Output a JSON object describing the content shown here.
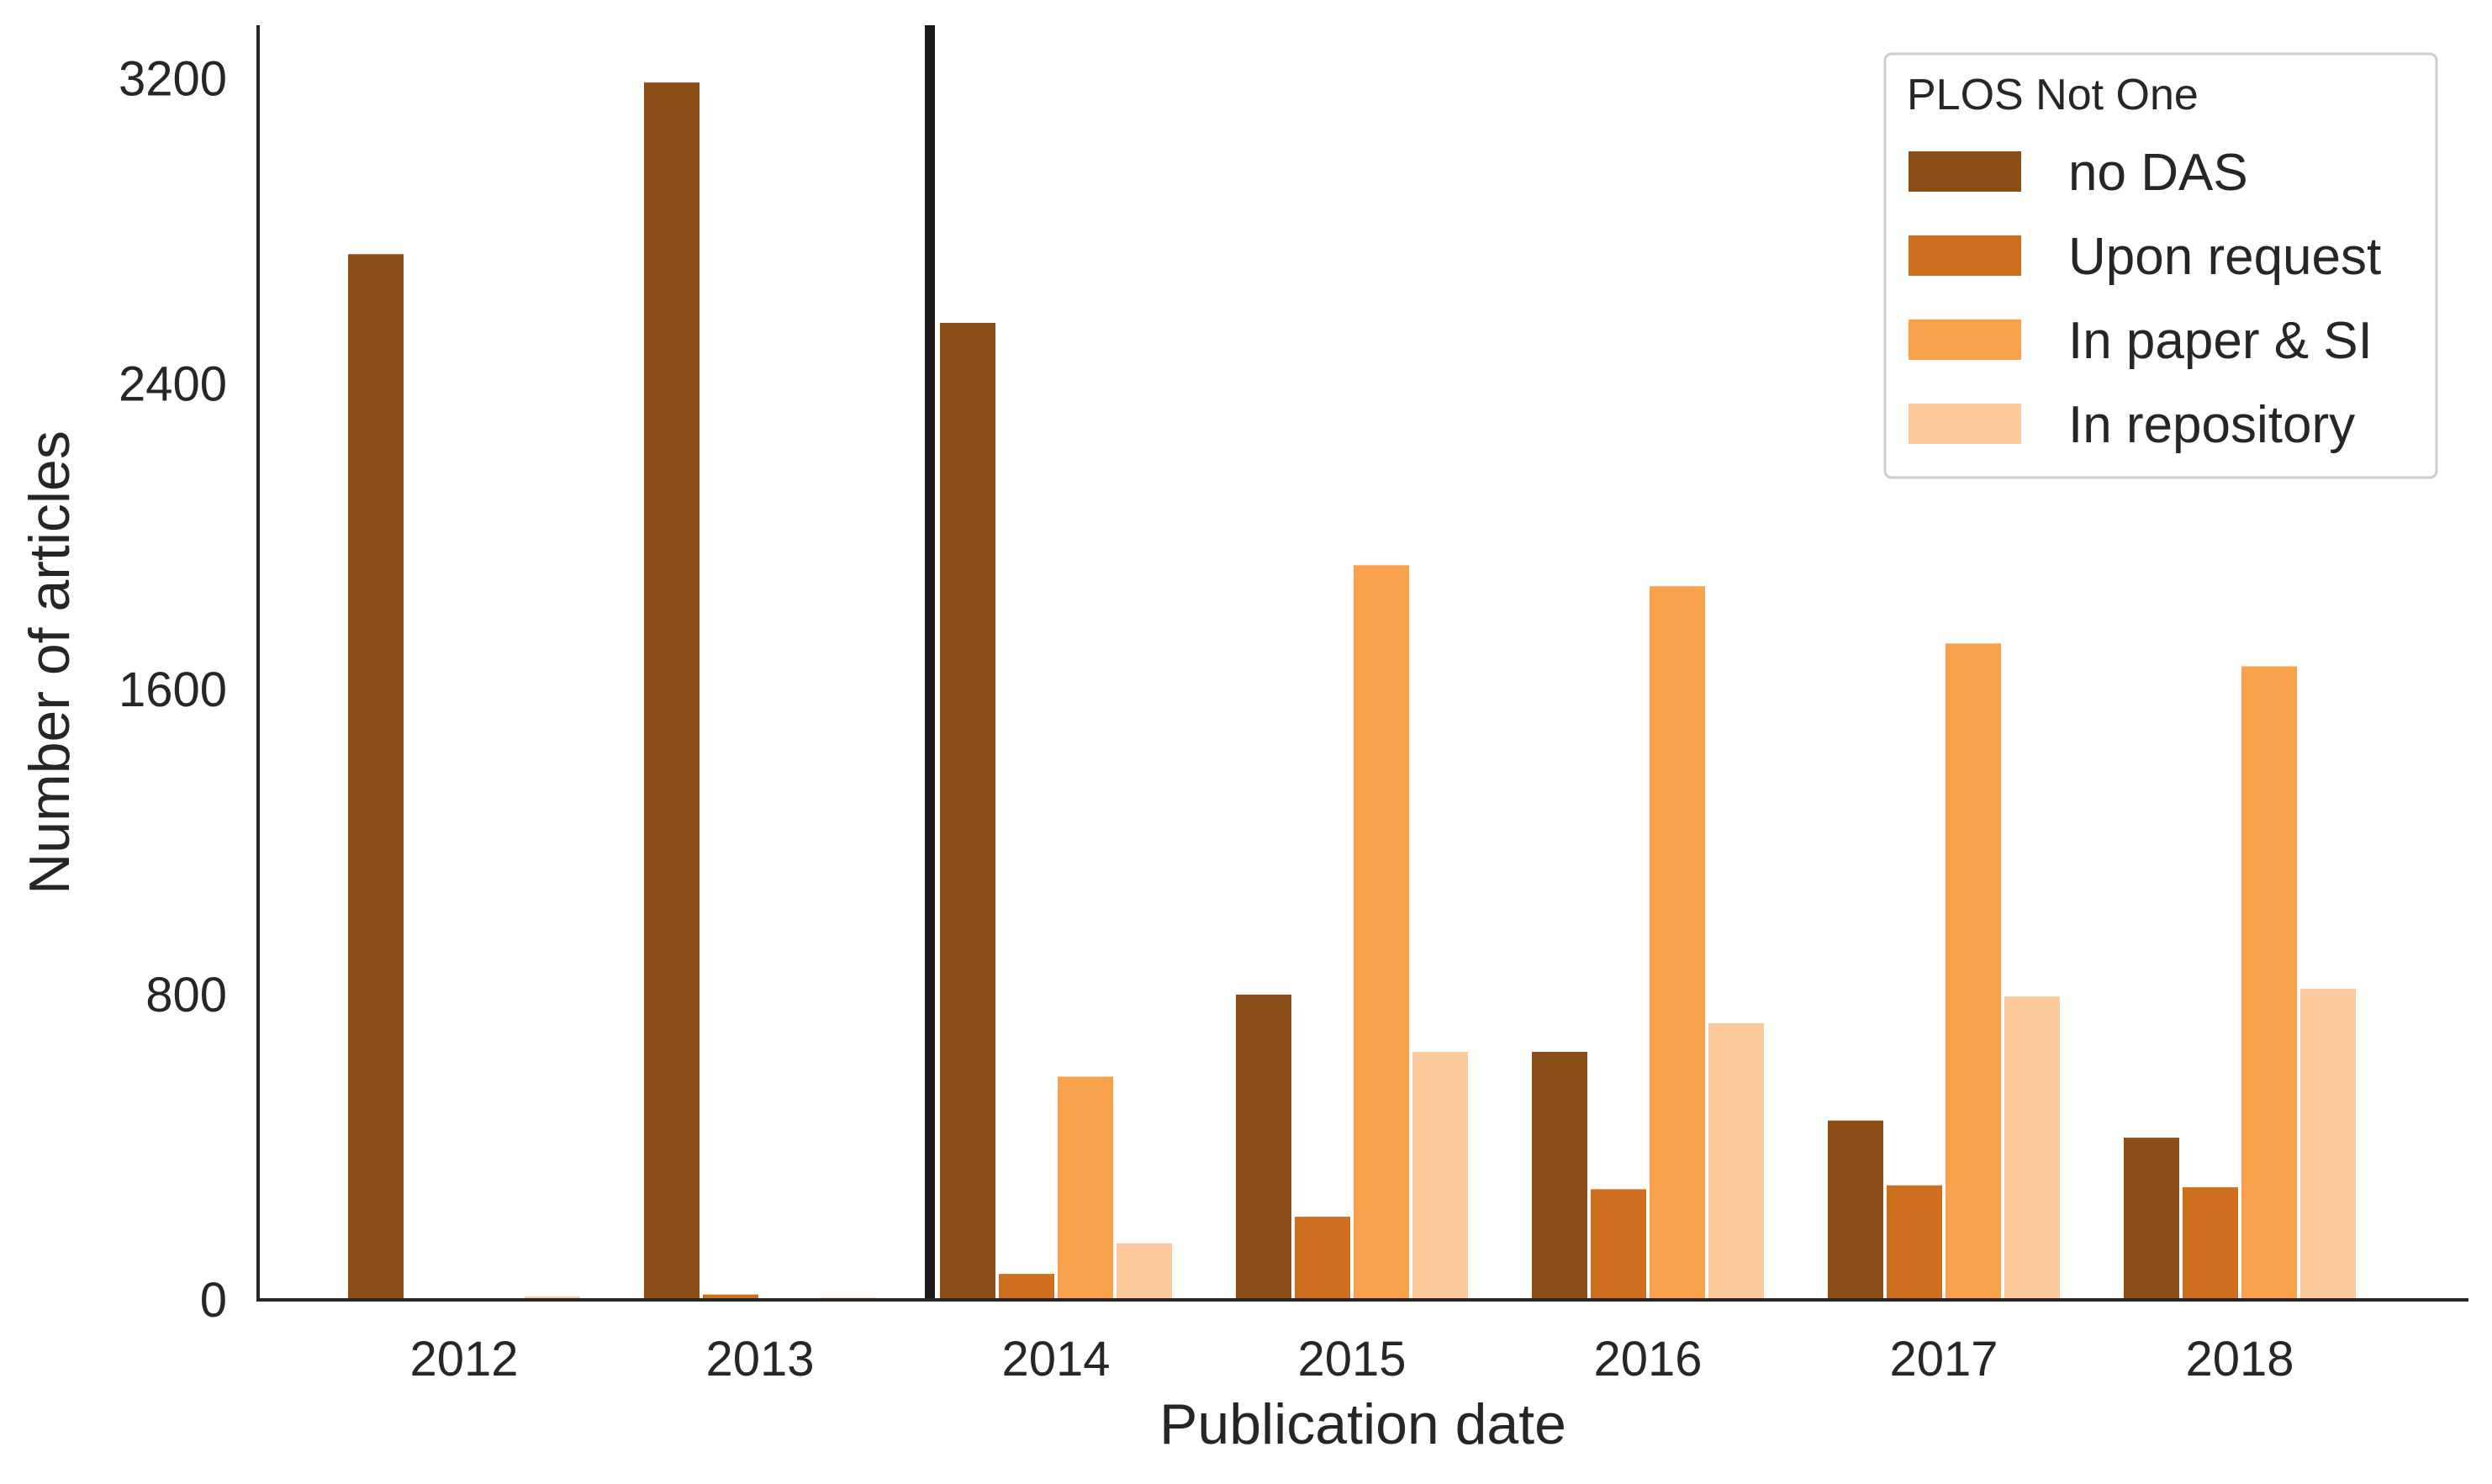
{
  "chart_data": {
    "type": "bar",
    "categories": [
      "2012",
      "2013",
      "2014",
      "2015",
      "2016",
      "2017",
      "2018"
    ],
    "series": [
      {
        "name": "no DAS",
        "color": "#8B4E17",
        "values": [
          2740,
          3190,
          2560,
          800,
          650,
          470,
          425
        ]
      },
      {
        "name": "Upon request",
        "color": "#CE7020",
        "values": [
          3,
          14,
          68,
          218,
          290,
          300,
          295
        ]
      },
      {
        "name": "In paper & SI",
        "color": "#F9A24D",
        "values": [
          2,
          2,
          585,
          1925,
          1870,
          1720,
          1660
        ]
      },
      {
        "name": "In repository",
        "color": "#FDCA9C",
        "values": [
          9,
          6,
          148,
          650,
          725,
          795,
          815
        ]
      }
    ],
    "title": "",
    "xlabel": "Publication date",
    "ylabel": "Number of articles",
    "ylim": [
      0,
      3340
    ],
    "yticks": [
      0,
      800,
      1600,
      2400,
      3200
    ],
    "grid": false,
    "legend": {
      "title": "PLOS Not One",
      "placement": "top-right"
    },
    "reference_line": {
      "x": "2014",
      "color": "#1a1a1a"
    }
  }
}
